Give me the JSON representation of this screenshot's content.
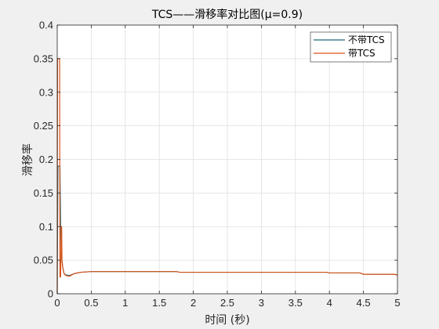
{
  "chart_data": {
    "type": "line",
    "title": "TCS——滑移率对比图(μ=0.9)",
    "xlabel": "时间 (秒)",
    "ylabel": "滑移率",
    "xlim": [
      0,
      5
    ],
    "ylim": [
      0,
      0.4
    ],
    "xticks": [
      0,
      0.5,
      1,
      1.5,
      2,
      2.5,
      3,
      3.5,
      4,
      4.5,
      5
    ],
    "xtick_labels": [
      "0",
      "0.5",
      "1",
      "1.5",
      "2",
      "2.5",
      "3",
      "3.5",
      "4",
      "4.5",
      "5"
    ],
    "yticks": [
      0,
      0.05,
      0.1,
      0.15,
      0.2,
      0.25,
      0.3,
      0.35,
      0.4
    ],
    "ytick_labels": [
      "0",
      "0.05",
      "0.1",
      "0.15",
      "0.2",
      "0.25",
      "0.3",
      "0.35",
      "0.4"
    ],
    "grid": true,
    "legend_position": "top-right",
    "series": [
      {
        "name": "不带TCS",
        "color": "#1f6b7a",
        "points": [
          [
            0,
            0
          ],
          [
            0.01,
            0.19
          ],
          [
            0.04,
            0.19
          ],
          [
            0.05,
            0.1
          ],
          [
            0.06,
            0.06
          ],
          [
            0.08,
            0.04
          ],
          [
            0.1,
            0.03
          ],
          [
            0.13,
            0.028
          ],
          [
            0.18,
            0.027
          ],
          [
            0.25,
            0.03
          ],
          [
            0.35,
            0.032
          ],
          [
            0.5,
            0.033
          ],
          [
            1.0,
            0.033
          ],
          [
            1.5,
            0.033
          ],
          [
            1.75,
            0.033
          ],
          [
            1.8,
            0.032
          ],
          [
            2.5,
            0.032
          ],
          [
            3.0,
            0.032
          ],
          [
            3.5,
            0.032
          ],
          [
            3.95,
            0.032
          ],
          [
            4.0,
            0.031
          ],
          [
            4.45,
            0.031
          ],
          [
            4.5,
            0.029
          ],
          [
            4.95,
            0.029
          ],
          [
            5.0,
            0.028
          ]
        ]
      },
      {
        "name": "带TCS",
        "color": "#d95319",
        "points": [
          [
            0,
            0
          ],
          [
            0.005,
            0.35
          ],
          [
            0.035,
            0.35
          ],
          [
            0.04,
            0.025
          ],
          [
            0.05,
            0.025
          ],
          [
            0.06,
            0.1
          ],
          [
            0.065,
            0.1
          ],
          [
            0.07,
            0.05
          ],
          [
            0.08,
            0.04
          ],
          [
            0.1,
            0.03
          ],
          [
            0.13,
            0.027
          ],
          [
            0.18,
            0.026
          ],
          [
            0.25,
            0.03
          ],
          [
            0.35,
            0.032
          ],
          [
            0.5,
            0.033
          ],
          [
            1.0,
            0.033
          ],
          [
            1.5,
            0.033
          ],
          [
            1.75,
            0.033
          ],
          [
            1.8,
            0.032
          ],
          [
            2.5,
            0.032
          ],
          [
            3.0,
            0.032
          ],
          [
            3.5,
            0.032
          ],
          [
            3.95,
            0.032
          ],
          [
            4.0,
            0.031
          ],
          [
            4.45,
            0.031
          ],
          [
            4.5,
            0.029
          ],
          [
            4.95,
            0.029
          ],
          [
            5.0,
            0.028
          ]
        ]
      }
    ]
  }
}
